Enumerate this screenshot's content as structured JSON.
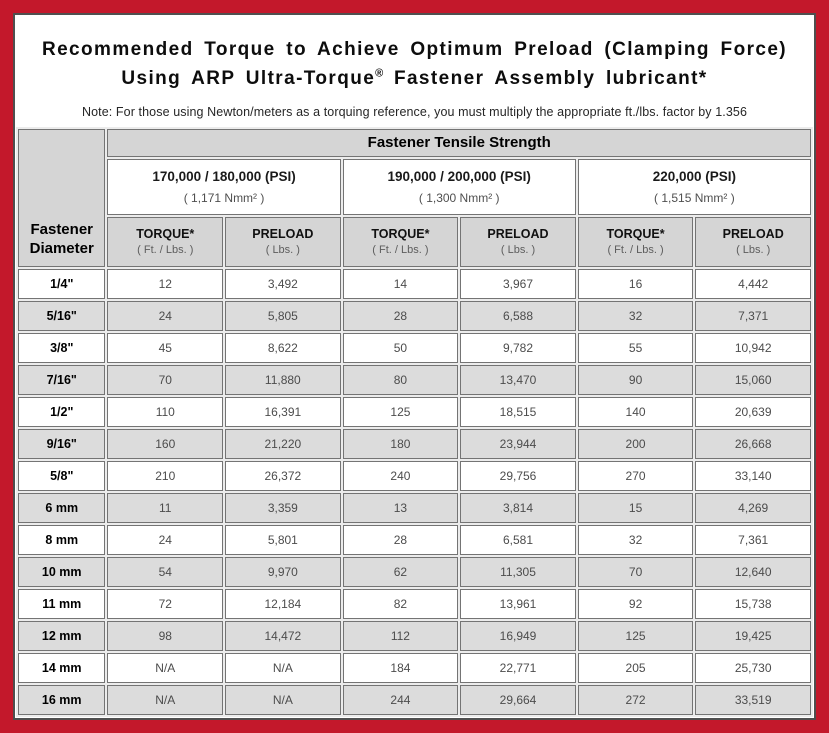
{
  "colors": {
    "frame_red": "#c3182b",
    "header_gray": "#d5d5d5",
    "row_alt_gray": "#dcdcdc",
    "cell_border": "#747474",
    "content_outline": "#4f4f4f"
  },
  "title": {
    "line1": "Recommended Torque to Achieve Optimum Preload (Clamping Force)",
    "line2_pre": "Using ARP Ultra-Torque",
    "line2_reg": "®",
    "line2_post": " Fastener Assembly lubricant*",
    "note": "Note: For those using Newton/meters as a torquing reference, you must multiply the appropriate ft./lbs. factor by 1.356"
  },
  "table": {
    "corner_header_line1": "Fastener",
    "corner_header_line2": "Diameter",
    "tensile_header": "Fastener Tensile Strength",
    "groups": [
      {
        "psi": "170,000 / 180,000 (PSI)",
        "nmm": "( 1,171 Nmm² )"
      },
      {
        "psi": "190,000 / 200,000 (PSI)",
        "nmm": "( 1,300 Nmm² )"
      },
      {
        "psi": "220,000 (PSI)",
        "nmm": "( 1,515 Nmm² )"
      }
    ],
    "col_headers": {
      "torque_label": "TORQUE*",
      "torque_unit": "( Ft. / Lbs. )",
      "preload_label": "PRELOAD",
      "preload_unit": "( Lbs. )"
    },
    "rows": [
      {
        "dia": "1/4\"",
        "values": [
          "12",
          "3,492",
          "14",
          "3,967",
          "16",
          "4,442"
        ]
      },
      {
        "dia": "5/16\"",
        "values": [
          "24",
          "5,805",
          "28",
          "6,588",
          "32",
          "7,371"
        ]
      },
      {
        "dia": "3/8\"",
        "values": [
          "45",
          "8,622",
          "50",
          "9,782",
          "55",
          "10,942"
        ]
      },
      {
        "dia": "7/16\"",
        "values": [
          "70",
          "11,880",
          "80",
          "13,470",
          "90",
          "15,060"
        ]
      },
      {
        "dia": "1/2\"",
        "values": [
          "110",
          "16,391",
          "125",
          "18,515",
          "140",
          "20,639"
        ]
      },
      {
        "dia": "9/16\"",
        "values": [
          "160",
          "21,220",
          "180",
          "23,944",
          "200",
          "26,668"
        ]
      },
      {
        "dia": "5/8\"",
        "values": [
          "210",
          "26,372",
          "240",
          "29,756",
          "270",
          "33,140"
        ]
      },
      {
        "dia": "6 mm",
        "values": [
          "11",
          "3,359",
          "13",
          "3,814",
          "15",
          "4,269"
        ]
      },
      {
        "dia": "8 mm",
        "values": [
          "24",
          "5,801",
          "28",
          "6,581",
          "32",
          "7,361"
        ]
      },
      {
        "dia": "10 mm",
        "values": [
          "54",
          "9,970",
          "62",
          "11,305",
          "70",
          "12,640"
        ]
      },
      {
        "dia": "11 mm",
        "values": [
          "72",
          "12,184",
          "82",
          "13,961",
          "92",
          "15,738"
        ]
      },
      {
        "dia": "12 mm",
        "values": [
          "98",
          "14,472",
          "112",
          "16,949",
          "125",
          "19,425"
        ]
      },
      {
        "dia": "14 mm",
        "values": [
          "N/A",
          "N/A",
          "184",
          "22,771",
          "205",
          "25,730"
        ]
      },
      {
        "dia": "16 mm",
        "values": [
          "N/A",
          "N/A",
          "244",
          "29,664",
          "272",
          "33,519"
        ]
      }
    ]
  }
}
